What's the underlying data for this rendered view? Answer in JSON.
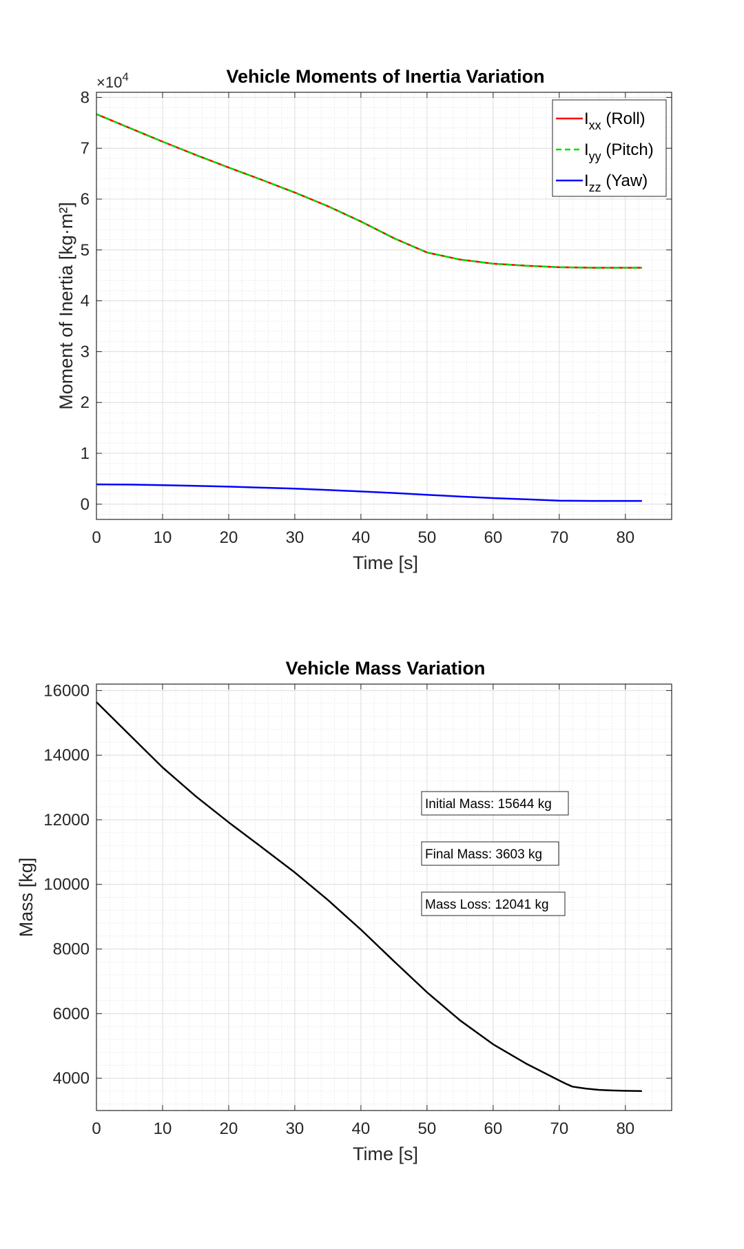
{
  "chart_data": [
    {
      "type": "line",
      "title": "Vehicle Moments of Inertia Variation",
      "xlabel": "Time [s]",
      "ylabel": "Moment of Inertia [kg·m²]",
      "y_exponent_base": "×10",
      "y_exponent_power": "4",
      "xlim": [
        0,
        87
      ],
      "ylim": [
        -0.3,
        8.1
      ],
      "y_scale_factor": 10000,
      "x_ticks": [
        "0",
        "10",
        "20",
        "30",
        "40",
        "50",
        "60",
        "70",
        "80"
      ],
      "y_ticks": [
        "0",
        "1",
        "2",
        "3",
        "4",
        "5",
        "6",
        "7",
        "8"
      ],
      "grid": true,
      "minor_grid": true,
      "legend_position": "top-right",
      "x": [
        0,
        5,
        10,
        15,
        20,
        25,
        30,
        35,
        40,
        45,
        50,
        55,
        60,
        65,
        70,
        75,
        80,
        82.5
      ],
      "series": [
        {
          "name": "I",
          "sub": "xx",
          "suffix": " (Roll)",
          "color": "#ff0000",
          "dash": "solid",
          "values": [
            7.67,
            7.4,
            7.13,
            6.87,
            6.62,
            6.38,
            6.13,
            5.86,
            5.56,
            5.23,
            4.95,
            4.81,
            4.73,
            4.69,
            4.66,
            4.65,
            4.65,
            4.65
          ]
        },
        {
          "name": "I",
          "sub": "yy",
          "suffix": " (Pitch)",
          "color": "#00dd00",
          "dash": "dashed",
          "values": [
            7.67,
            7.4,
            7.13,
            6.87,
            6.62,
            6.38,
            6.13,
            5.86,
            5.56,
            5.23,
            4.95,
            4.81,
            4.73,
            4.69,
            4.66,
            4.65,
            4.65,
            4.65
          ]
        },
        {
          "name": "I",
          "sub": "zz",
          "suffix": " (Yaw)",
          "color": "#0000ff",
          "dash": "solid",
          "values": [
            0.39,
            0.385,
            0.375,
            0.36,
            0.345,
            0.325,
            0.305,
            0.28,
            0.25,
            0.22,
            0.185,
            0.15,
            0.12,
            0.095,
            0.07,
            0.065,
            0.065,
            0.065
          ]
        }
      ]
    },
    {
      "type": "line",
      "title": "Vehicle Mass Variation",
      "xlabel": "Time [s]",
      "ylabel": "Mass [kg]",
      "xlim": [
        0,
        87
      ],
      "ylim": [
        3000,
        16200
      ],
      "x_ticks": [
        "0",
        "10",
        "20",
        "30",
        "40",
        "50",
        "60",
        "70",
        "80"
      ],
      "y_ticks": [
        "4000",
        "6000",
        "8000",
        "10000",
        "12000",
        "14000",
        "16000"
      ],
      "grid": true,
      "minor_grid": true,
      "x": [
        0,
        5,
        10,
        15,
        20,
        25,
        30,
        35,
        40,
        45,
        50,
        55,
        60,
        65,
        70,
        71,
        72,
        74,
        76,
        78,
        80,
        82.5
      ],
      "series": [
        {
          "color": "#000000",
          "dash": "solid",
          "values": [
            15644,
            14630,
            13620,
            12730,
            11920,
            11150,
            10370,
            9520,
            8600,
            7620,
            6660,
            5790,
            5050,
            4450,
            3930,
            3830,
            3740,
            3680,
            3640,
            3620,
            3610,
            3603
          ]
        }
      ],
      "annotations": [
        {
          "text": "Initial Mass: 15644 kg"
        },
        {
          "text": "Final Mass: 3603 kg"
        },
        {
          "text": "Mass Loss: 12041 kg"
        }
      ]
    }
  ]
}
